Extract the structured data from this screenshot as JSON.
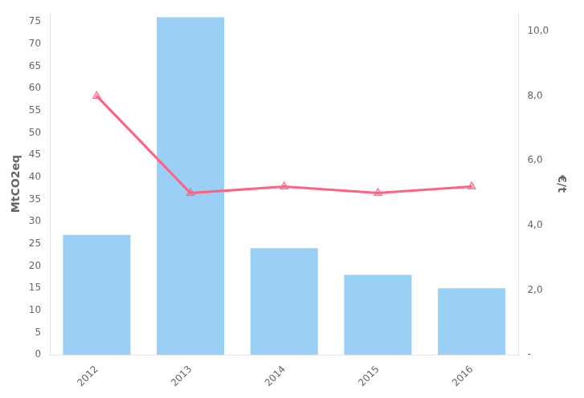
{
  "chart_data": {
    "type": "bar",
    "categories": [
      "2012",
      "2013",
      "2014",
      "2015",
      "2016"
    ],
    "series": [
      {
        "type": "bar",
        "values": [
          27,
          76,
          24,
          18,
          15
        ]
      },
      {
        "type": "line",
        "axis": "y2",
        "marker": "triangle",
        "values": [
          8.0,
          5.0,
          5.2,
          5.0,
          5.2
        ]
      }
    ],
    "y_label": "MtCO2eq",
    "y2_label": "€/t",
    "ylim": [
      0,
      77
    ],
    "yticks": [
      0,
      5,
      10,
      15,
      20,
      25,
      30,
      35,
      40,
      45,
      50,
      55,
      60,
      65,
      70,
      75
    ],
    "y2lim": [
      0,
      10.57
    ],
    "y2ticks": [
      {
        "value": 0,
        "label": "-"
      },
      {
        "value": 2,
        "label": "2,0"
      },
      {
        "value": 4,
        "label": "4,0"
      },
      {
        "value": 6,
        "label": "6,0"
      },
      {
        "value": 8,
        "label": "8,0"
      },
      {
        "value": 10,
        "label": "10,0"
      }
    ],
    "grid": false
  }
}
